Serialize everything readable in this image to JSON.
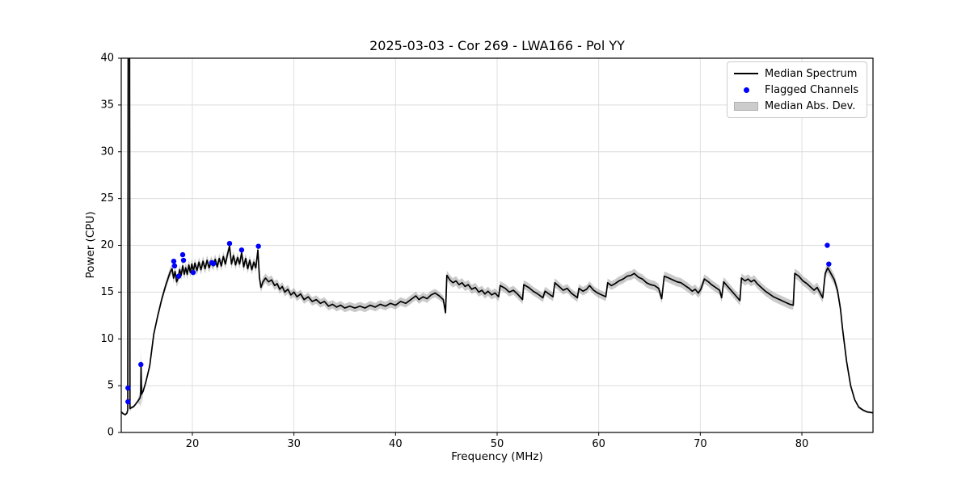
{
  "chart": {
    "title": "2025-03-03 - Cor 269 - LWA166 - Pol YY",
    "xlabel": "Frequency (MHz)",
    "ylabel": "Power (CPU)"
  },
  "legend": {
    "items": [
      {
        "label": "Median Spectrum",
        "type": "line",
        "color": "#000000"
      },
      {
        "label": "Flagged Channels",
        "type": "dot",
        "color": "#0000ff"
      },
      {
        "label": "Median Abs. Dev.",
        "type": "band",
        "color": "#cccccc"
      }
    ],
    "position": "upper right"
  },
  "chart_data": {
    "type": "line",
    "title": "2025-03-03 - Cor 269 - LWA166 - Pol YY",
    "xlabel": "Frequency (MHz)",
    "ylabel": "Power (CPU)",
    "xlim": [
      13,
      87
    ],
    "ylim": [
      0,
      40
    ],
    "x_ticks": [
      20,
      30,
      40,
      50,
      60,
      70,
      80
    ],
    "y_ticks": [
      0,
      5,
      10,
      15,
      20,
      25,
      30,
      35,
      40
    ],
    "grid": true,
    "grid_color": "#dcdcdc",
    "spine_color": "#000000",
    "series": [
      {
        "name": "Median Spectrum",
        "type": "line",
        "color": "#000000",
        "points": [
          [
            13.0,
            2.2
          ],
          [
            13.2,
            2.0
          ],
          [
            13.4,
            1.9
          ],
          [
            13.55,
            2.05
          ],
          [
            13.64,
            2.4
          ],
          [
            13.68,
            42
          ],
          [
            13.82,
            42
          ],
          [
            13.86,
            2.55
          ],
          [
            14.0,
            2.65
          ],
          [
            14.2,
            2.75
          ],
          [
            14.4,
            3.0
          ],
          [
            14.6,
            3.3
          ],
          [
            14.85,
            3.7
          ],
          [
            14.91,
            4.0
          ],
          [
            14.95,
            7.26
          ],
          [
            15.0,
            4.1
          ],
          [
            15.15,
            4.4
          ],
          [
            15.4,
            5.3
          ],
          [
            15.8,
            7.1
          ],
          [
            16.2,
            10.5
          ],
          [
            16.6,
            12.5
          ],
          [
            17.0,
            14.3
          ],
          [
            17.4,
            15.8
          ],
          [
            17.8,
            17.1
          ],
          [
            18.0,
            17.5
          ],
          [
            18.15,
            16.5
          ],
          [
            18.3,
            17.2
          ],
          [
            18.45,
            16.1
          ],
          [
            18.6,
            16.5
          ],
          [
            18.75,
            17.4
          ],
          [
            18.9,
            16.8
          ],
          [
            19.05,
            17.8
          ],
          [
            19.2,
            16.9
          ],
          [
            19.35,
            17.6
          ],
          [
            19.5,
            16.9
          ],
          [
            19.65,
            17.9
          ],
          [
            19.8,
            17.1
          ],
          [
            19.95,
            18.0
          ],
          [
            20.1,
            17.2
          ],
          [
            20.25,
            18.1
          ],
          [
            20.45,
            17.3
          ],
          [
            20.65,
            18.2
          ],
          [
            20.85,
            17.4
          ],
          [
            21.05,
            18.3
          ],
          [
            21.25,
            17.5
          ],
          [
            21.45,
            18.4
          ],
          [
            21.65,
            17.6
          ],
          [
            21.85,
            18.3
          ],
          [
            22.05,
            17.8
          ],
          [
            22.25,
            18.5
          ],
          [
            22.45,
            17.7
          ],
          [
            22.65,
            18.6
          ],
          [
            22.85,
            17.8
          ],
          [
            23.05,
            18.8
          ],
          [
            23.25,
            18.0
          ],
          [
            23.45,
            19.0
          ],
          [
            23.66,
            19.9
          ],
          [
            23.85,
            18.0
          ],
          [
            24.05,
            18.9
          ],
          [
            24.25,
            17.9
          ],
          [
            24.45,
            18.7
          ],
          [
            24.65,
            18.0
          ],
          [
            24.85,
            19.2
          ],
          [
            25.05,
            17.7
          ],
          [
            25.25,
            18.6
          ],
          [
            25.45,
            17.5
          ],
          [
            25.65,
            18.4
          ],
          [
            25.85,
            17.4
          ],
          [
            26.05,
            18.2
          ],
          [
            26.25,
            17.6
          ],
          [
            26.45,
            19.5
          ],
          [
            26.6,
            16.6
          ],
          [
            26.75,
            15.5
          ],
          [
            26.95,
            16.1
          ],
          [
            27.2,
            16.5
          ],
          [
            27.5,
            16.1
          ],
          [
            27.8,
            16.3
          ],
          [
            28.1,
            15.7
          ],
          [
            28.35,
            15.9
          ],
          [
            28.6,
            15.3
          ],
          [
            28.85,
            15.6
          ],
          [
            29.1,
            15.0
          ],
          [
            29.4,
            15.3
          ],
          [
            29.7,
            14.7
          ],
          [
            30.0,
            15.0
          ],
          [
            30.3,
            14.5
          ],
          [
            30.65,
            14.8
          ],
          [
            31.0,
            14.2
          ],
          [
            31.4,
            14.5
          ],
          [
            31.8,
            14.0
          ],
          [
            32.2,
            14.2
          ],
          [
            32.6,
            13.8
          ],
          [
            33.0,
            14.0
          ],
          [
            33.4,
            13.5
          ],
          [
            33.8,
            13.7
          ],
          [
            34.2,
            13.4
          ],
          [
            34.6,
            13.6
          ],
          [
            35.0,
            13.3
          ],
          [
            35.5,
            13.5
          ],
          [
            36.0,
            13.3
          ],
          [
            36.5,
            13.5
          ],
          [
            37.0,
            13.3
          ],
          [
            37.5,
            13.6
          ],
          [
            38.0,
            13.4
          ],
          [
            38.5,
            13.7
          ],
          [
            39.0,
            13.5
          ],
          [
            39.5,
            13.8
          ],
          [
            40.0,
            13.6
          ],
          [
            40.5,
            14.0
          ],
          [
            41.0,
            13.8
          ],
          [
            41.5,
            14.2
          ],
          [
            42.0,
            14.6
          ],
          [
            42.3,
            14.2
          ],
          [
            42.7,
            14.5
          ],
          [
            43.1,
            14.3
          ],
          [
            43.5,
            14.7
          ],
          [
            43.9,
            14.9
          ],
          [
            44.3,
            14.6
          ],
          [
            44.7,
            14.2
          ],
          [
            44.92,
            12.8
          ],
          [
            45.05,
            16.8
          ],
          [
            45.35,
            16.3
          ],
          [
            45.65,
            16.0
          ],
          [
            45.95,
            16.2
          ],
          [
            46.25,
            15.8
          ],
          [
            46.55,
            16.0
          ],
          [
            46.85,
            15.6
          ],
          [
            47.15,
            15.8
          ],
          [
            47.5,
            15.3
          ],
          [
            47.85,
            15.5
          ],
          [
            48.2,
            15.0
          ],
          [
            48.5,
            15.2
          ],
          [
            48.8,
            14.8
          ],
          [
            49.1,
            15.1
          ],
          [
            49.45,
            14.7
          ],
          [
            49.8,
            14.9
          ],
          [
            50.15,
            14.5
          ],
          [
            50.3,
            15.7
          ],
          [
            50.8,
            15.4
          ],
          [
            51.2,
            15.0
          ],
          [
            51.6,
            15.2
          ],
          [
            52.0,
            14.8
          ],
          [
            52.5,
            14.2
          ],
          [
            52.62,
            15.8
          ],
          [
            53.1,
            15.5
          ],
          [
            53.55,
            15.1
          ],
          [
            54.0,
            14.8
          ],
          [
            54.5,
            14.4
          ],
          [
            54.72,
            15.1
          ],
          [
            55.1,
            14.8
          ],
          [
            55.5,
            14.5
          ],
          [
            55.68,
            16.0
          ],
          [
            56.1,
            15.6
          ],
          [
            56.5,
            15.2
          ],
          [
            56.9,
            15.4
          ],
          [
            57.3,
            14.9
          ],
          [
            57.9,
            14.4
          ],
          [
            58.05,
            15.4
          ],
          [
            58.45,
            15.1
          ],
          [
            58.8,
            15.3
          ],
          [
            59.1,
            15.7
          ],
          [
            59.5,
            15.2
          ],
          [
            59.9,
            14.9
          ],
          [
            60.3,
            14.7
          ],
          [
            60.7,
            14.5
          ],
          [
            60.88,
            16.0
          ],
          [
            61.25,
            15.7
          ],
          [
            61.6,
            15.9
          ],
          [
            62.0,
            16.2
          ],
          [
            62.4,
            16.4
          ],
          [
            62.8,
            16.7
          ],
          [
            63.2,
            16.8
          ],
          [
            63.5,
            17.0
          ],
          [
            63.9,
            16.6
          ],
          [
            64.3,
            16.4
          ],
          [
            64.7,
            16.0
          ],
          [
            65.1,
            15.8
          ],
          [
            65.5,
            15.7
          ],
          [
            65.9,
            15.4
          ],
          [
            66.2,
            14.3
          ],
          [
            66.45,
            16.7
          ],
          [
            66.9,
            16.5
          ],
          [
            67.3,
            16.3
          ],
          [
            67.7,
            16.1
          ],
          [
            68.1,
            16.0
          ],
          [
            68.5,
            15.7
          ],
          [
            68.9,
            15.4
          ],
          [
            69.2,
            15.1
          ],
          [
            69.5,
            15.3
          ],
          [
            69.8,
            14.9
          ],
          [
            70.05,
            15.3
          ],
          [
            70.4,
            16.4
          ],
          [
            70.8,
            16.1
          ],
          [
            71.1,
            15.8
          ],
          [
            71.5,
            15.5
          ],
          [
            71.9,
            15.2
          ],
          [
            72.1,
            14.4
          ],
          [
            72.3,
            16.1
          ],
          [
            72.7,
            15.6
          ],
          [
            73.1,
            15.1
          ],
          [
            73.5,
            14.6
          ],
          [
            73.9,
            14.1
          ],
          [
            74.05,
            16.5
          ],
          [
            74.4,
            16.2
          ],
          [
            74.7,
            16.4
          ],
          [
            75.0,
            16.1
          ],
          [
            75.3,
            16.3
          ],
          [
            75.6,
            15.9
          ],
          [
            76.0,
            15.5
          ],
          [
            76.4,
            15.1
          ],
          [
            76.8,
            14.8
          ],
          [
            77.2,
            14.5
          ],
          [
            77.6,
            14.3
          ],
          [
            78.0,
            14.1
          ],
          [
            78.4,
            13.9
          ],
          [
            78.8,
            13.7
          ],
          [
            79.15,
            13.6
          ],
          [
            79.3,
            17.0
          ],
          [
            79.7,
            16.7
          ],
          [
            80.1,
            16.2
          ],
          [
            80.5,
            15.9
          ],
          [
            80.9,
            15.5
          ],
          [
            81.2,
            15.2
          ],
          [
            81.5,
            15.5
          ],
          [
            81.8,
            14.9
          ],
          [
            82.05,
            14.4
          ],
          [
            82.3,
            17.0
          ],
          [
            82.55,
            17.6
          ],
          [
            82.75,
            17.2
          ],
          [
            82.95,
            16.8
          ],
          [
            83.2,
            16.3
          ],
          [
            83.5,
            15.2
          ],
          [
            83.8,
            13.2
          ],
          [
            84.0,
            11.1
          ],
          [
            84.4,
            7.6
          ],
          [
            84.8,
            5.0
          ],
          [
            85.2,
            3.5
          ],
          [
            85.6,
            2.7
          ],
          [
            86.0,
            2.4
          ],
          [
            86.4,
            2.2
          ],
          [
            87.0,
            2.1
          ]
        ]
      },
      {
        "name": "Flagged Channels",
        "type": "scatter",
        "color": "#0000ff",
        "points": [
          [
            13.66,
            4.75
          ],
          [
            13.66,
            3.28
          ],
          [
            14.93,
            7.26
          ],
          [
            18.17,
            18.3
          ],
          [
            18.25,
            17.8
          ],
          [
            18.65,
            16.7
          ],
          [
            19.05,
            19.0
          ],
          [
            19.13,
            18.4
          ],
          [
            20.08,
            17.1
          ],
          [
            21.91,
            18.15
          ],
          [
            22.07,
            18.05
          ],
          [
            23.66,
            20.2
          ],
          [
            24.85,
            19.5
          ],
          [
            26.5,
            19.9
          ],
          [
            82.5,
            20.0
          ],
          [
            82.65,
            18.0
          ]
        ]
      },
      {
        "name": "Median Abs. Dev.",
        "type": "band",
        "color": "#808080",
        "opacity": 0.42,
        "mad": [
          [
            13.0,
            0.1
          ],
          [
            13.6,
            0.1
          ],
          [
            13.75,
            1.0
          ],
          [
            13.9,
            0.12
          ],
          [
            14.8,
            0.15
          ],
          [
            14.95,
            1.85
          ],
          [
            15.1,
            0.2
          ],
          [
            15.6,
            0.25
          ],
          [
            16.5,
            0.3
          ],
          [
            17.5,
            0.4
          ],
          [
            18.0,
            0.55
          ],
          [
            27.0,
            0.5
          ],
          [
            31.0,
            0.45
          ],
          [
            44.0,
            0.45
          ],
          [
            44.9,
            0.4
          ],
          [
            45.1,
            0.5
          ],
          [
            60.0,
            0.45
          ],
          [
            64.0,
            0.5
          ],
          [
            79.0,
            0.5
          ],
          [
            83.0,
            0.55
          ],
          [
            83.8,
            0.5
          ],
          [
            84.5,
            0.3
          ],
          [
            85.2,
            0.15
          ],
          [
            87.0,
            0.1
          ]
        ]
      }
    ]
  }
}
